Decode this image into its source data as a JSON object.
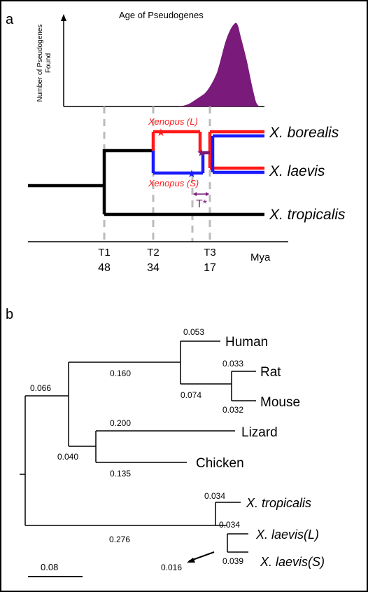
{
  "panel_a": {
    "label": "a",
    "title": "Age of Pseudogenes",
    "ylabel_line1": "Number of Pseudogenes",
    "ylabel_line2": "Found",
    "taxa": {
      "borealis": "X. borealis",
      "laevis": "X. laevis",
      "tropicalis": "X. tropicalis"
    },
    "subgenome_L": "Xenopus (L)",
    "subgenome_S": "Xenopus (S)",
    "t_star": "T*",
    "axis_unit": "Mya",
    "time_points": [
      {
        "label": "T1",
        "value": "48"
      },
      {
        "label": "T2",
        "value": "34"
      },
      {
        "label": "T3",
        "value": "17"
      }
    ],
    "colors": {
      "L": "#ff1a1a",
      "S": "#1a1aff",
      "density": "#7a1a7a",
      "tstar": "#7a1a7a",
      "tree": "#000000",
      "dash": "#bbbbbb"
    }
  },
  "panel_b": {
    "label": "b",
    "taxa": {
      "human": "Human",
      "rat": "Rat",
      "mouse": "Mouse",
      "lizard": "Lizard",
      "chicken": "Chicken",
      "xtrop": "X. tropicalis",
      "xlaevL": "X. laevis(L)",
      "xlaevS": "X. laevis(S)"
    },
    "branch_lengths": {
      "human": "0.053",
      "rat": "0.033",
      "mouse": "0.032",
      "rodents": "0.074",
      "mammals": "0.160",
      "amniotes": "0.066",
      "lizard": "0.200",
      "sauropsids": "0.040",
      "chicken": "0.135",
      "xtrop": "0.034",
      "xlaevis": "0.034",
      "inner": "0.016",
      "xlaevS": "0.039",
      "xenopus": "0.276"
    },
    "scale_bar": "0.08"
  }
}
